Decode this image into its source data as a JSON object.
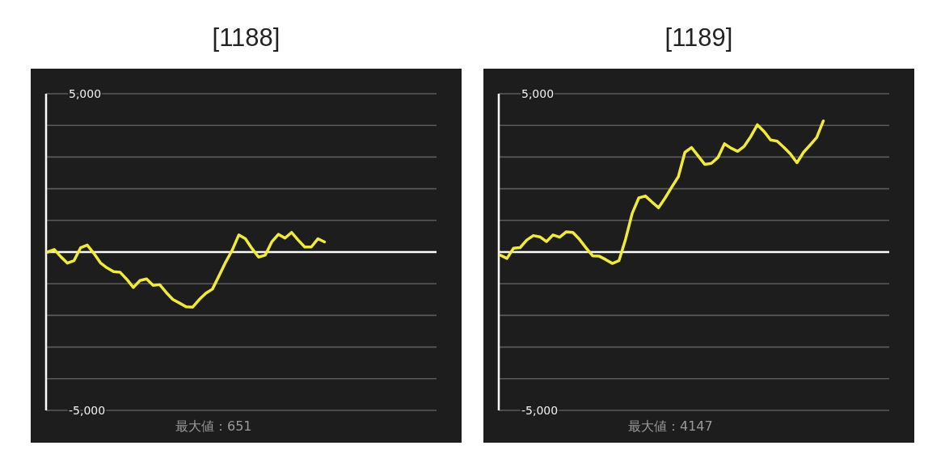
{
  "chart_data": [
    {
      "type": "line",
      "title": "[1188]",
      "categories": [
        null,
        null,
        null,
        null,
        null,
        null,
        null,
        null,
        null,
        null,
        null,
        null,
        null,
        null,
        null,
        null,
        null,
        null,
        null,
        null,
        null,
        null,
        null,
        null,
        null,
        null,
        null,
        null,
        null,
        null,
        null,
        null,
        null,
        null,
        null,
        null,
        null,
        null,
        null,
        null,
        null,
        null,
        null,
        null,
        null,
        null,
        null,
        null,
        null,
        null,
        null,
        null,
        null,
        null,
        null,
        null,
        null,
        null,
        null,
        null
      ],
      "series": [
        {
          "color": "#f2ea3a",
          "values": [
            0,
            80,
            -150,
            -350,
            -270,
            140,
            220,
            -40,
            -340,
            -500,
            -620,
            -640,
            -860,
            -1120,
            -900,
            -850,
            -1050,
            -1030,
            -1280,
            -1500,
            -1610,
            -1730,
            -1740,
            -1500,
            -1300,
            -1170,
            -750,
            -320,
            60,
            540,
            420,
            110,
            -160,
            -100,
            320,
            560,
            440,
            620,
            380,
            160,
            160,
            420,
            320,
            null,
            null,
            null,
            null,
            null,
            null,
            null,
            null,
            null,
            null,
            null,
            null,
            null,
            null,
            null,
            null,
            null
          ]
        }
      ],
      "ylim": [
        -5000,
        5000
      ],
      "yticks": [
        {
          "value": -5000,
          "label": "-5,000"
        },
        {
          "value": -4000,
          "label": null
        },
        {
          "value": -3000,
          "label": null
        },
        {
          "value": -2000,
          "label": null
        },
        {
          "value": -1000,
          "label": null
        },
        {
          "value": 0,
          "label": null
        },
        {
          "value": 1000,
          "label": null
        },
        {
          "value": 2000,
          "label": null
        },
        {
          "value": 3000,
          "label": null
        },
        {
          "value": 4000,
          "label": null
        },
        {
          "value": 5000,
          "label": "5,000"
        }
      ],
      "grid": "y",
      "tick_labels": "y",
      "ref_lines": [
        {
          "axis": "y",
          "value": 0,
          "color": "#ffffff"
        }
      ],
      "annotations": [
        "最大値：651"
      ]
    },
    {
      "type": "line",
      "title": "[1189]",
      "categories": [
        null,
        null,
        null,
        null,
        null,
        null,
        null,
        null,
        null,
        null,
        null,
        null,
        null,
        null,
        null,
        null,
        null,
        null,
        null,
        null,
        null,
        null,
        null,
        null,
        null,
        null,
        null,
        null,
        null,
        null,
        null,
        null,
        null,
        null,
        null,
        null,
        null,
        null,
        null,
        null,
        null,
        null,
        null,
        null,
        null,
        null,
        null,
        null,
        null,
        null,
        null,
        null,
        null,
        null,
        null,
        null,
        null,
        null,
        null,
        null
      ],
      "series": [
        {
          "color": "#f2ea3a",
          "values": [
            -100,
            -200,
            120,
            140,
            380,
            520,
            480,
            330,
            540,
            470,
            640,
            620,
            400,
            130,
            -120,
            -130,
            -240,
            -360,
            -270,
            410,
            1220,
            1710,
            1770,
            1580,
            1400,
            1710,
            2050,
            2380,
            3150,
            3300,
            3040,
            2770,
            2800,
            2980,
            3420,
            3280,
            3180,
            3340,
            3650,
            4020,
            3810,
            3540,
            3500,
            3310,
            3100,
            2820,
            3150,
            3380,
            3620,
            4140,
            null,
            null,
            null,
            null,
            null,
            null,
            null,
            null,
            null,
            null
          ]
        }
      ],
      "ylim": [
        -5000,
        5000
      ],
      "yticks": [
        {
          "value": -5000,
          "label": "-5,000"
        },
        {
          "value": -4000,
          "label": null
        },
        {
          "value": -3000,
          "label": null
        },
        {
          "value": -2000,
          "label": null
        },
        {
          "value": -1000,
          "label": null
        },
        {
          "value": 0,
          "label": null
        },
        {
          "value": 1000,
          "label": null
        },
        {
          "value": 2000,
          "label": null
        },
        {
          "value": 3000,
          "label": null
        },
        {
          "value": 4000,
          "label": null
        },
        {
          "value": 5000,
          "label": "5,000"
        }
      ],
      "grid": "y",
      "tick_labels": "y",
      "ref_lines": [
        {
          "axis": "y",
          "value": 0,
          "color": "#ffffff"
        }
      ],
      "annotations": [
        "最大値：4147"
      ]
    }
  ]
}
